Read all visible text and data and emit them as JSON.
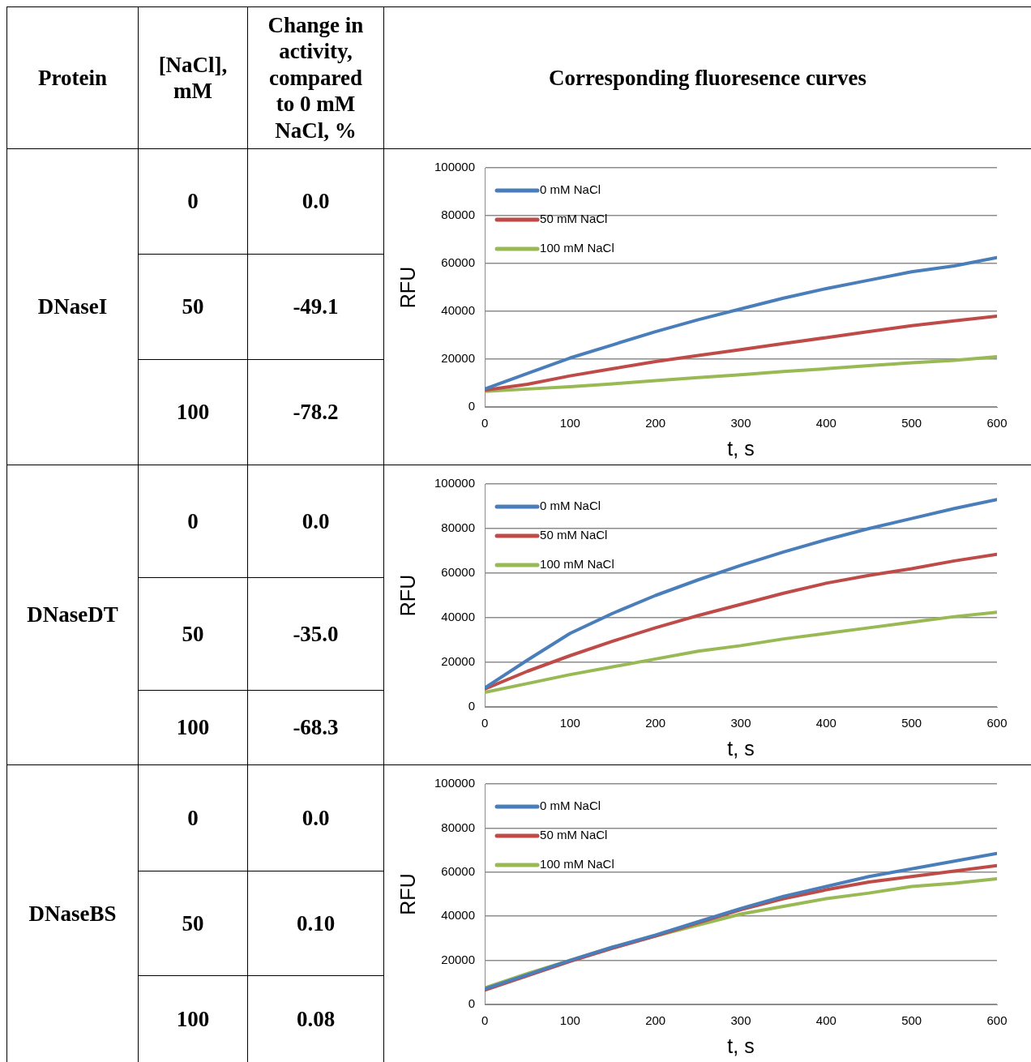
{
  "chart_data": [
    {
      "type": "other",
      "annotations": [
        "Protein",
        "[NaCl], mM",
        "Change in activity, compared to 0 mM NaCl, %",
        "Corresponding fluoresence curves",
        "DNaseI",
        "0",
        "0.0",
        "50",
        "-49.1",
        "100",
        "-78.2",
        "DNaseDT",
        "0",
        "0.0",
        "50",
        "-35.0",
        "100",
        "-68.3",
        "DNaseBS",
        "0",
        "0.0",
        "50",
        "0.10",
        "100",
        "0.08"
      ]
    },
    {
      "type": "line",
      "x": [
        0,
        50,
        100,
        150,
        200,
        250,
        300,
        350,
        400,
        450,
        500,
        550,
        600
      ],
      "xlabel": "t, s",
      "ylabel": "RFU",
      "xlim": [
        0,
        600
      ],
      "xticks": [
        0,
        100,
        200,
        300,
        400,
        500,
        600
      ],
      "ylim": [
        0,
        100000
      ],
      "yticks": [
        0,
        20000,
        40000,
        60000,
        80000,
        100000
      ],
      "grid": "y",
      "legend": "top left",
      "marker": "none",
      "series": [
        {
          "name": "0 mM NaCl",
          "color": "#4a7ebb",
          "values": [
            7500,
            14000,
            20500,
            26000,
            31500,
            36500,
            41000,
            45500,
            49500,
            53000,
            56500,
            59000,
            62500
          ]
        },
        {
          "name": "50 mM NaCl",
          "color": "#be4b48",
          "values": [
            7000,
            9500,
            13000,
            16000,
            19000,
            21500,
            24000,
            26500,
            29000,
            31500,
            34000,
            36000,
            38000
          ]
        },
        {
          "name": "100 mM NaCl",
          "color": "#98b954",
          "values": [
            6500,
            7500,
            8500,
            9700,
            11000,
            12300,
            13500,
            14800,
            16000,
            17300,
            18500,
            19500,
            21000
          ]
        }
      ]
    },
    {
      "type": "line",
      "x": [
        0,
        50,
        100,
        150,
        200,
        250,
        300,
        350,
        400,
        450,
        500,
        550,
        600
      ],
      "xlabel": "t, s",
      "ylabel": "RFU",
      "xlim": [
        0,
        600
      ],
      "xticks": [
        0,
        100,
        200,
        300,
        400,
        500,
        600
      ],
      "ylim": [
        0,
        100000
      ],
      "yticks": [
        0,
        20000,
        40000,
        60000,
        80000,
        100000
      ],
      "grid": "y",
      "legend": "top left",
      "marker": "none",
      "series": [
        {
          "name": "0 mM NaCl",
          "color": "#4a7ebb",
          "values": [
            8500,
            21000,
            33000,
            42000,
            50000,
            57000,
            63500,
            69500,
            75000,
            80000,
            84500,
            89000,
            93000
          ]
        },
        {
          "name": "50 mM NaCl",
          "color": "#be4b48",
          "values": [
            8000,
            16000,
            23000,
            29500,
            35500,
            41000,
            46000,
            51000,
            55500,
            59000,
            62000,
            65500,
            68500
          ]
        },
        {
          "name": "100 mM NaCl",
          "color": "#98b954",
          "values": [
            6500,
            10500,
            14500,
            18000,
            21500,
            25000,
            27500,
            30500,
            33000,
            35500,
            38000,
            40500,
            42500
          ]
        }
      ]
    },
    {
      "type": "line",
      "x": [
        0,
        50,
        100,
        150,
        200,
        250,
        300,
        350,
        400,
        450,
        500,
        550,
        600
      ],
      "xlabel": "t, s",
      "ylabel": "RFU",
      "xlim": [
        0,
        600
      ],
      "xticks": [
        0,
        100,
        200,
        300,
        400,
        500,
        600
      ],
      "ylim": [
        0,
        100000
      ],
      "yticks": [
        0,
        20000,
        40000,
        60000,
        80000,
        100000
      ],
      "grid": "y",
      "legend": "top left",
      "marker": "none",
      "series": [
        {
          "name": "0 mM NaCl",
          "color": "#4a7ebb",
          "values": [
            7000,
            13500,
            20000,
            26000,
            31500,
            37500,
            43500,
            49000,
            53500,
            58000,
            61500,
            65000,
            68500
          ]
        },
        {
          "name": "50 mM NaCl",
          "color": "#be4b48",
          "values": [
            6500,
            13000,
            19500,
            25500,
            31000,
            37000,
            43000,
            48000,
            52000,
            55500,
            58000,
            60500,
            63000
          ]
        },
        {
          "name": "100 mM NaCl",
          "color": "#98b954",
          "values": [
            7500,
            14000,
            20000,
            26000,
            31000,
            36000,
            41000,
            44500,
            48000,
            50500,
            53500,
            55000,
            57000
          ]
        }
      ]
    }
  ]
}
